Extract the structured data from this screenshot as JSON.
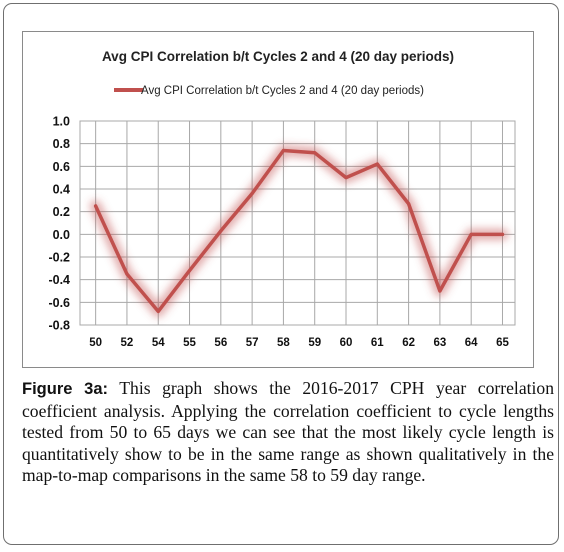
{
  "chart_data": {
    "type": "line",
    "title": "Avg CPI Correlation b/t Cycles 2 and 4 (20 day periods)",
    "legend": {
      "position": "top",
      "entries": [
        "Avg CPI Correlation b/t Cycles 2 and 4 (20 day periods)"
      ]
    },
    "categories": [
      "50",
      "52",
      "54",
      "55",
      "56",
      "57",
      "58",
      "59",
      "60",
      "61",
      "62",
      "63",
      "64",
      "65"
    ],
    "series": [
      {
        "name": "Avg CPI Correlation b/t Cycles 2 and 4 (20 day periods)",
        "color": "#c0504d",
        "values": [
          0.25,
          -0.35,
          -0.68,
          -0.32,
          0.03,
          0.36,
          0.74,
          0.72,
          0.5,
          0.62,
          0.27,
          -0.5,
          0.0,
          0.0
        ]
      }
    ],
    "y_ticks": [
      "1.0",
      "0.8",
      "0.6",
      "0.4",
      "0.2",
      "0.0",
      "-0.2",
      "-0.4",
      "-0.6",
      "-0.8"
    ],
    "ylim": [
      -0.8,
      1.0
    ],
    "grid": true
  },
  "caption": {
    "label": "Figure 3a:",
    "text": "This graph shows the 2016-2017 CPH year correlation coefficient analysis. Applying the correlation coefficient to cycle lengths tested from 50 to 65 days we can see that the most likely cycle length is quantitatively show to be in the same range as shown qualitatively in the map-to-map comparisons in the same 58 to 59 day range."
  }
}
